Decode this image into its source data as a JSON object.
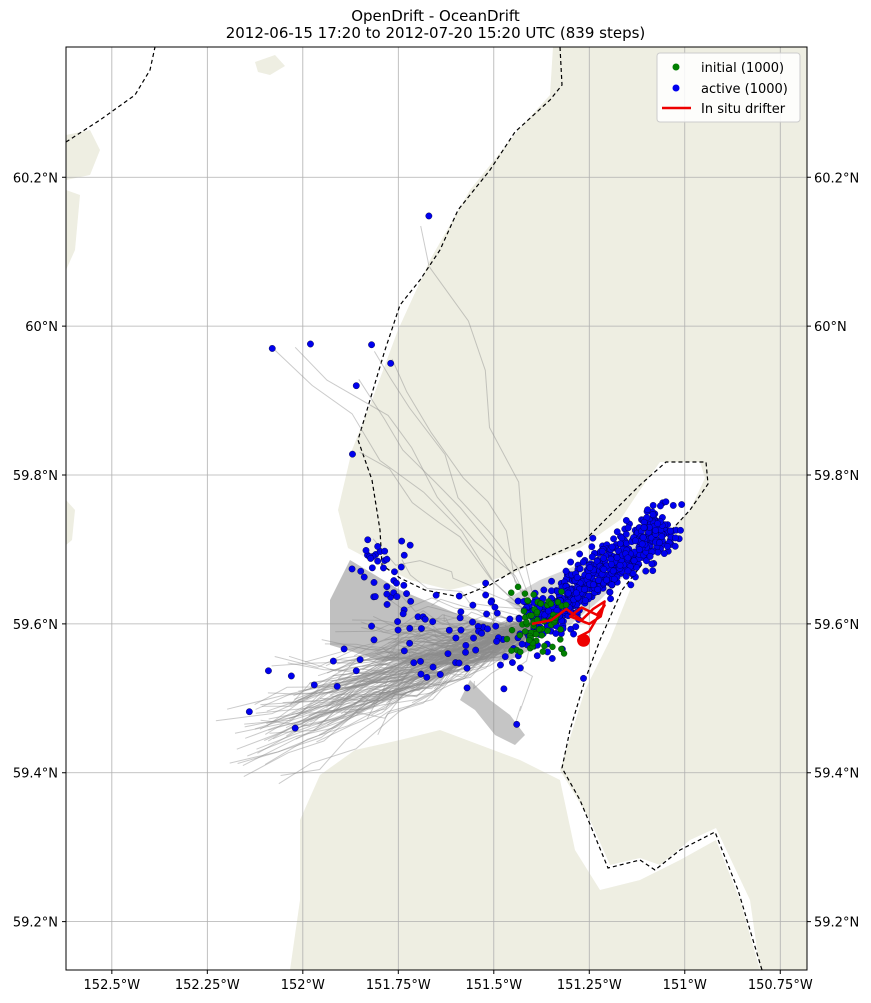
{
  "chart_data": {
    "type": "scatter",
    "title": "OpenDrift - OceanDrift",
    "subtitle": "2012-06-15 17:20 to 2012-07-20 15:20 UTC (839 steps)",
    "xlim": [
      -152.62,
      -150.68
    ],
    "ylim": [
      59.135,
      60.375
    ],
    "x_ticks": [
      {
        "value": -152.5,
        "label": "152.5°W"
      },
      {
        "value": -152.25,
        "label": "152.25°W"
      },
      {
        "value": -152.0,
        "label": "152°W"
      },
      {
        "value": -151.75,
        "label": "151.75°W"
      },
      {
        "value": -151.5,
        "label": "151.5°W"
      },
      {
        "value": -151.25,
        "label": "151.25°W"
      },
      {
        "value": -151.0,
        "label": "151°W"
      },
      {
        "value": -150.75,
        "label": "150.75°W"
      }
    ],
    "y_ticks": [
      {
        "value": 59.2,
        "label": "59.2°N"
      },
      {
        "value": 59.4,
        "label": "59.4°N"
      },
      {
        "value": 59.6,
        "label": "59.6°N"
      },
      {
        "value": 59.8,
        "label": "59.8°N"
      },
      {
        "value": 60.0,
        "label": "60°N"
      },
      {
        "value": 60.2,
        "label": "60.2°N"
      }
    ],
    "grid": true,
    "legend_position": "top-right",
    "legend": [
      {
        "label": "initial (1000)",
        "marker": "dot",
        "color": "#007f00"
      },
      {
        "label": "active (1000)",
        "marker": "dot",
        "color": "#0000ee"
      },
      {
        "label": "In situ drifter",
        "marker": "line",
        "color": "#ee0000"
      }
    ],
    "colors": {
      "land": "#eeeee2",
      "trajectory": "#8c8c8c",
      "initial": "#007f00",
      "active": "#0000ee",
      "drifter": "#ee0000",
      "boundary": "#000000"
    },
    "initial_cluster": {
      "center": [
        -151.38,
        59.6
      ],
      "spread": [
        0.04,
        0.02
      ]
    },
    "active_isolated": [
      [
        -151.67,
        60.148
      ],
      [
        -152.08,
        59.97
      ],
      [
        -151.98,
        59.976
      ],
      [
        -151.82,
        59.975
      ],
      [
        -151.77,
        59.95
      ],
      [
        -151.86,
        59.92
      ],
      [
        -151.87,
        59.828
      ],
      [
        -151.83,
        59.713
      ],
      [
        -152.09,
        59.537
      ],
      [
        -152.03,
        59.53
      ],
      [
        -152.14,
        59.482
      ],
      [
        -152.02,
        59.46
      ],
      [
        -151.97,
        59.518
      ],
      [
        -151.91,
        59.516
      ],
      [
        -151.92,
        59.55
      ],
      [
        -151.86,
        59.537
      ],
      [
        -151.85,
        59.552
      ],
      [
        -151.57,
        59.514
      ],
      [
        -151.6,
        59.548
      ],
      [
        -151.64,
        59.532
      ],
      [
        -151.62,
        59.56
      ],
      [
        -151.44,
        59.465
      ],
      [
        -151.82,
        59.597
      ],
      [
        -151.77,
        59.636
      ],
      [
        -151.76,
        59.67
      ],
      [
        -151.78,
        59.64
      ],
      [
        -151.72,
        59.594
      ],
      [
        -151.66,
        59.603
      ]
    ],
    "active_clusters": [
      {
        "center": [
          -151.53,
          59.59
        ],
        "spread": [
          0.14,
          0.03
        ],
        "count": 80
      },
      {
        "center": [
          -151.77,
          59.66
        ],
        "spread": [
          0.05,
          0.03
        ],
        "count": 20
      },
      {
        "center": [
          -151.81,
          59.69
        ],
        "spread": [
          0.02,
          0.008
        ],
        "count": 12
      },
      {
        "center": [
          -151.2,
          59.66
        ],
        "spread": [
          0.05,
          0.05
        ],
        "count": 450
      },
      {
        "center": [
          -151.1,
          59.71
        ],
        "spread": [
          0.03,
          0.02
        ],
        "count": 100
      }
    ],
    "drifter_track": [
      [
        -151.4,
        59.6
      ],
      [
        -151.35,
        59.605
      ],
      [
        -151.31,
        59.62
      ],
      [
        -151.27,
        59.605
      ],
      [
        -151.24,
        59.62
      ],
      [
        -151.21,
        59.63
      ],
      [
        -151.22,
        59.61
      ],
      [
        -151.25,
        59.6
      ],
      [
        -151.3,
        59.61
      ],
      [
        -151.27,
        59.622
      ],
      [
        -151.23,
        59.612
      ],
      [
        -151.21,
        59.625
      ],
      [
        -151.25,
        59.59
      ],
      [
        -151.28,
        59.582
      ]
    ],
    "drifter_end": [
      -151.265,
      59.578
    ]
  }
}
